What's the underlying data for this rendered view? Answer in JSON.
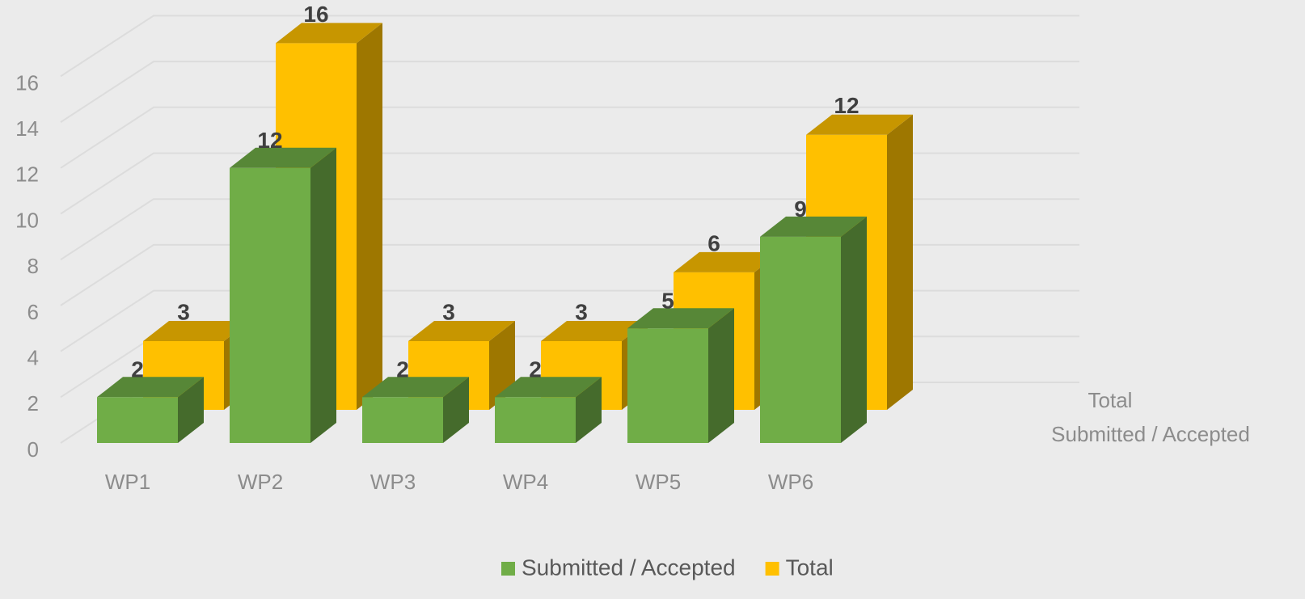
{
  "chart_data": {
    "type": "bar3d",
    "categories": [
      "WP1",
      "WP2",
      "WP3",
      "WP4",
      "WP5",
      "WP6"
    ],
    "series": [
      {
        "name": "Submitted / Accepted",
        "color": "#70ad47",
        "values": [
          2,
          12,
          2,
          2,
          5,
          9
        ]
      },
      {
        "name": "Total",
        "color": "#ffc000",
        "values": [
          3,
          16,
          3,
          3,
          6,
          12
        ]
      }
    ],
    "ylim": [
      0,
      16
    ],
    "yticks": [
      0,
      2,
      4,
      6,
      8,
      10,
      12,
      14,
      16
    ],
    "grid": true,
    "legend": "bottom"
  }
}
